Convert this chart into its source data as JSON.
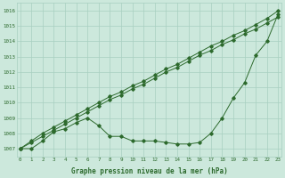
{
  "x": [
    0,
    1,
    2,
    3,
    4,
    5,
    6,
    7,
    8,
    9,
    10,
    11,
    12,
    13,
    14,
    15,
    16,
    17,
    18,
    19,
    20,
    21,
    22,
    23
  ],
  "line_straight1": [
    1007.0,
    1007.4,
    1007.8,
    1008.2,
    1008.6,
    1009.0,
    1009.4,
    1009.8,
    1010.2,
    1010.5,
    1010.9,
    1011.2,
    1011.6,
    1012.0,
    1012.3,
    1012.7,
    1013.1,
    1013.4,
    1013.8,
    1014.1,
    1014.5,
    1014.8,
    1015.2,
    1015.6
  ],
  "line_straight2": [
    1007.0,
    1007.5,
    1008.0,
    1008.4,
    1008.8,
    1009.2,
    1009.6,
    1010.0,
    1010.4,
    1010.7,
    1011.1,
    1011.4,
    1011.8,
    1012.2,
    1012.5,
    1012.9,
    1013.3,
    1013.7,
    1014.0,
    1014.4,
    1014.7,
    1015.1,
    1015.5,
    1016.0
  ],
  "line_curved": [
    1007.0,
    1007.0,
    1007.5,
    1008.1,
    1008.3,
    1008.7,
    1009.0,
    1008.5,
    1007.8,
    1007.8,
    1007.5,
    1007.5,
    1007.5,
    1007.4,
    1007.3,
    1007.3,
    1007.4,
    1008.0,
    1009.0,
    1010.3,
    1011.3,
    1013.1,
    1014.0,
    1015.8
  ],
  "line_color": "#2d6a2d",
  "bg_color": "#cce8dc",
  "grid_color": "#a8cfc0",
  "xlabel": "Graphe pression niveau de la mer (hPa)",
  "yticks": [
    1007,
    1008,
    1009,
    1010,
    1011,
    1012,
    1013,
    1014,
    1015,
    1016
  ],
  "xticks": [
    0,
    1,
    2,
    3,
    4,
    5,
    6,
    7,
    8,
    9,
    10,
    11,
    12,
    13,
    14,
    15,
    16,
    17,
    18,
    19,
    20,
    21,
    22,
    23
  ],
  "ylim": [
    1006.5,
    1016.5
  ],
  "xlim": [
    -0.3,
    23.3
  ]
}
